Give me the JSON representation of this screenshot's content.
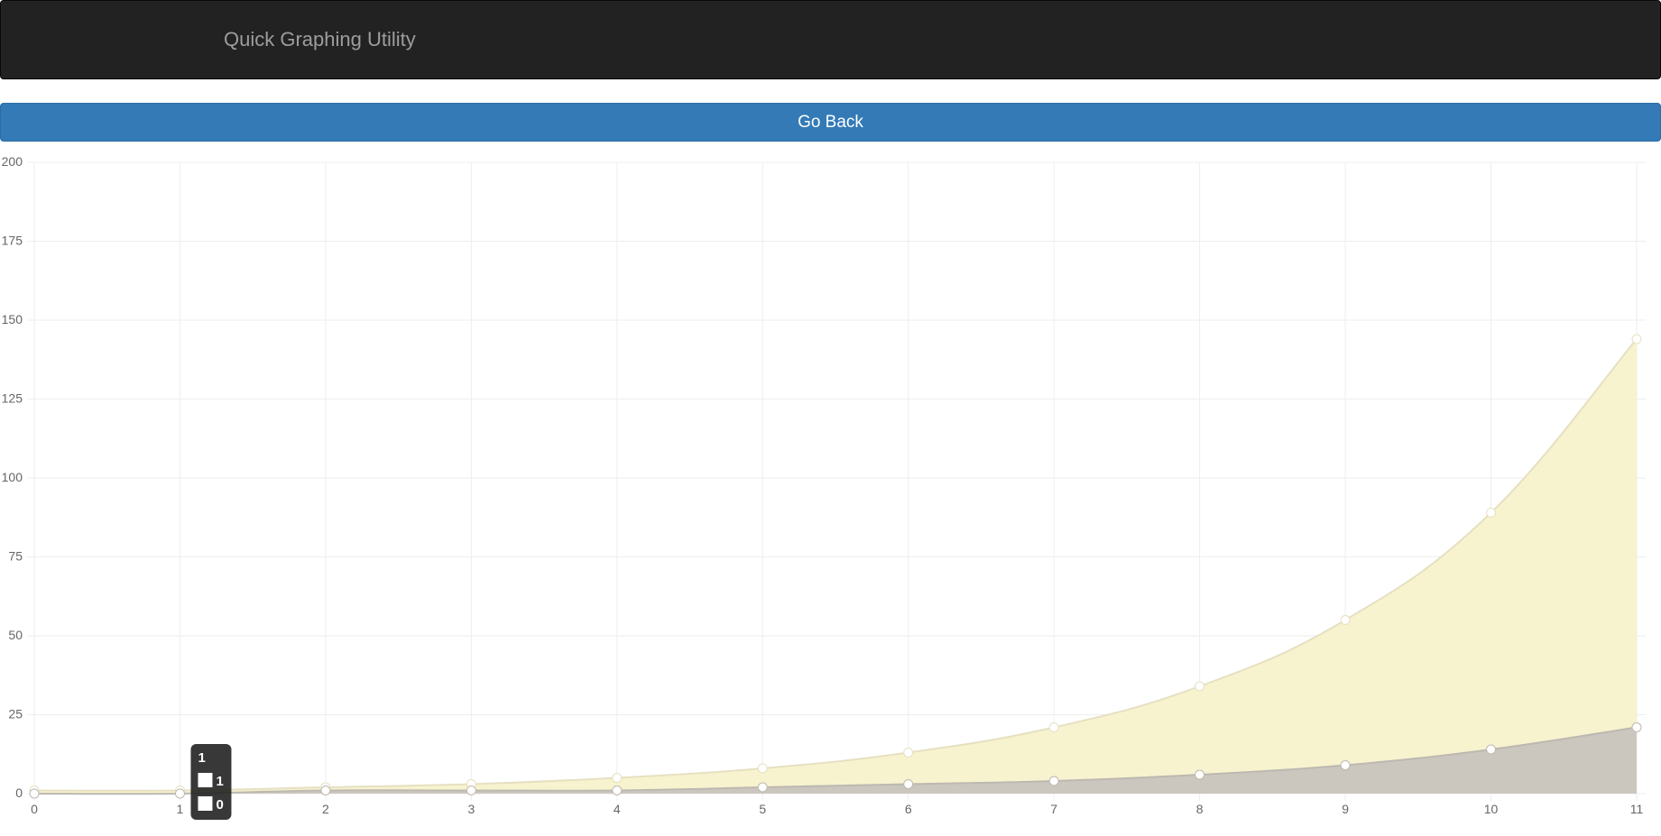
{
  "navbar": {
    "brand": "Quick Graphing Utility"
  },
  "actions": {
    "go_back_label": "Go Back"
  },
  "chart_data": {
    "type": "area",
    "x": [
      0,
      1,
      2,
      3,
      4,
      5,
      6,
      7,
      8,
      9,
      10,
      11
    ],
    "series": [
      {
        "name": "1",
        "values": [
          1,
          1,
          2,
          3,
          5,
          8,
          13,
          21,
          34,
          55,
          89,
          144
        ],
        "fill": "#f7f2cc",
        "stroke": "#e6e0c2"
      },
      {
        "name": "0",
        "values": [
          0,
          0,
          1,
          1,
          1,
          2,
          3,
          4,
          6,
          9,
          14,
          21
        ],
        "fill": "#c9c4bd",
        "stroke": "#bdb8b0"
      }
    ],
    "xlim": [
      0,
      11
    ],
    "ylim": [
      0,
      200
    ],
    "y_ticks": [
      0,
      25,
      50,
      75,
      100,
      125,
      150,
      175,
      200
    ],
    "x_ticks": [
      0,
      1,
      2,
      3,
      4,
      5,
      6,
      7,
      8,
      9,
      10,
      11
    ],
    "grid": true,
    "tooltip": {
      "title": "1",
      "entries": [
        {
          "label": "1"
        },
        {
          "label": "0"
        }
      ]
    }
  },
  "colors": {
    "navbar_bg": "#222222",
    "brand_text": "#9d9d9d",
    "button_bg": "#337ab7",
    "grid": "#eeeeee",
    "tick_text": "#666666",
    "tooltip_bg": "#222222"
  }
}
